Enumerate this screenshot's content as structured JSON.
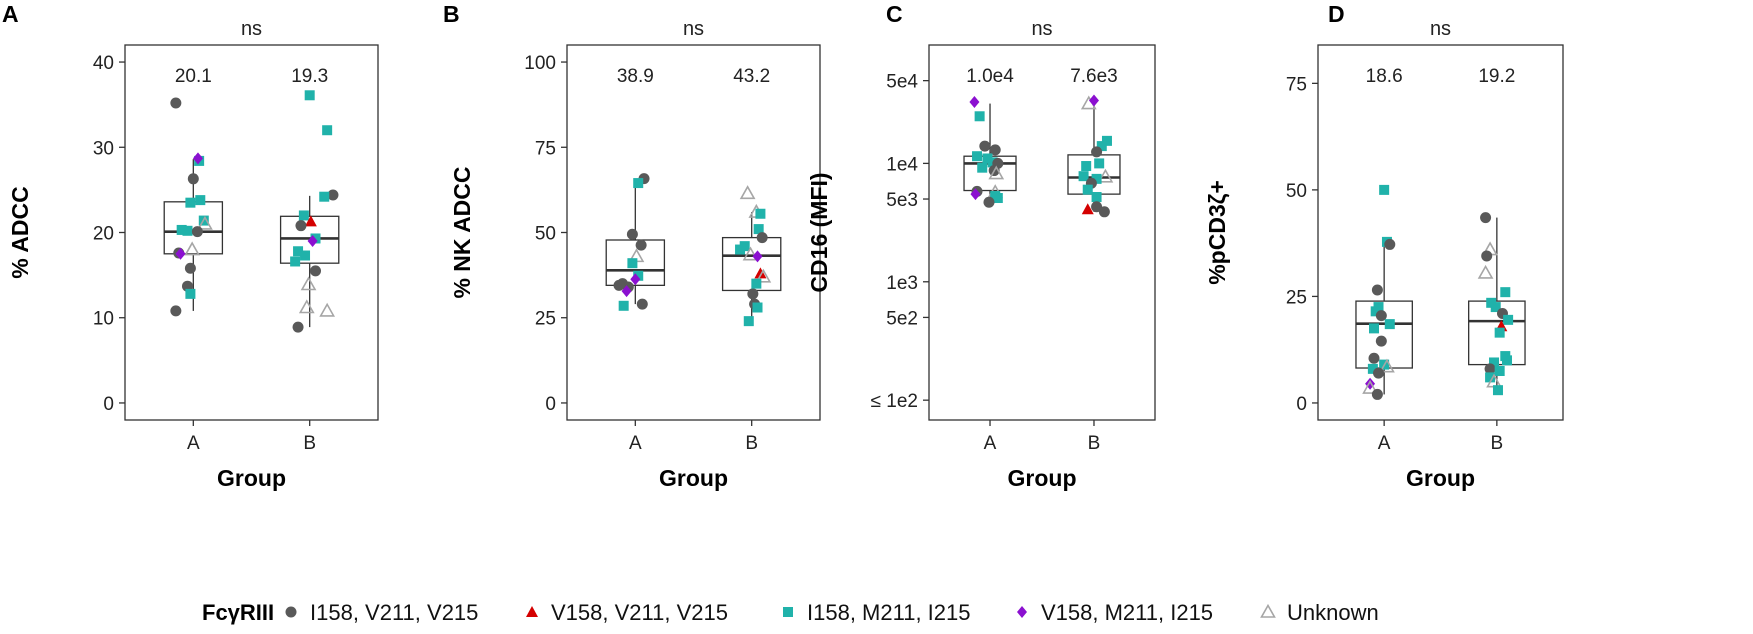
{
  "colors": {
    "I158_V211_V215": "#595959",
    "V158_V211_V215": "#d40000",
    "I158_M211_I215": "#20b2aa",
    "V158_M211_I215": "#8b10d0",
    "Unknown": "#a6a6a6"
  },
  "legend": {
    "title": "FcγRIII",
    "entries": [
      {
        "key": "I158_V211_V215",
        "label": "I158, V211, V215",
        "shape": "circle"
      },
      {
        "key": "V158_V211_V215",
        "label": "V158, V211, V215",
        "shape": "triangle"
      },
      {
        "key": "I158_M211_I215",
        "label": "I158, M211, I215",
        "shape": "square"
      },
      {
        "key": "V158_M211_I215",
        "label": "V158, M211, I215",
        "shape": "diamond"
      },
      {
        "key": "Unknown",
        "label": "Unknown",
        "shape": "open-triangle"
      }
    ]
  },
  "chart_data": [
    {
      "panel": "A",
      "type": "box+scatter",
      "scale": "linear",
      "title": "ns",
      "xlabel": "Group",
      "ylabel": "% ADCC",
      "categories": [
        "A",
        "B"
      ],
      "ylim": [
        -2,
        42
      ],
      "yticks": [
        0,
        10,
        20,
        30,
        40
      ],
      "yticklabels": [
        "0",
        "10",
        "20",
        "30",
        "40"
      ],
      "medians_label": [
        "20.1",
        "19.3"
      ],
      "boxes": [
        {
          "q1": 17.5,
          "median": 20.1,
          "q3": 23.6,
          "wlo": 10.8,
          "whi": 28.6
        },
        {
          "q1": 16.4,
          "median": 19.3,
          "q3": 21.9,
          "wlo": 8.9,
          "whi": 24.3
        }
      ],
      "points": [
        {
          "g": 0,
          "j": -0.3,
          "y": 35.2,
          "c": "I158_V211_V215"
        },
        {
          "g": 0,
          "j": 0.0,
          "y": 26.3,
          "c": "I158_V211_V215"
        },
        {
          "g": 0,
          "j": 0.1,
          "y": 28.4,
          "c": "I158_M211_I215"
        },
        {
          "g": 0,
          "j": 0.08,
          "y": 28.7,
          "c": "V158_M211_I215"
        },
        {
          "g": 0,
          "j": 0.12,
          "y": 23.8,
          "c": "I158_M211_I215"
        },
        {
          "g": 0,
          "j": -0.05,
          "y": 23.5,
          "c": "I158_M211_I215"
        },
        {
          "g": 0,
          "j": 0.18,
          "y": 21.4,
          "c": "I158_M211_I215"
        },
        {
          "g": 0,
          "j": 0.2,
          "y": 21.0,
          "c": "Unknown"
        },
        {
          "g": 0,
          "j": -0.2,
          "y": 20.3,
          "c": "I158_M211_I215"
        },
        {
          "g": 0,
          "j": -0.1,
          "y": 20.2,
          "c": "I158_M211_I215"
        },
        {
          "g": 0,
          "j": 0.07,
          "y": 20.1,
          "c": "I158_V211_V215"
        },
        {
          "g": 0,
          "j": -0.25,
          "y": 17.6,
          "c": "I158_V211_V215"
        },
        {
          "g": 0,
          "j": -0.02,
          "y": 18.0,
          "c": "Unknown"
        },
        {
          "g": 0,
          "j": -0.22,
          "y": 17.5,
          "c": "V158_M211_I215"
        },
        {
          "g": 0,
          "j": -0.05,
          "y": 15.8,
          "c": "I158_V211_V215"
        },
        {
          "g": 0,
          "j": -0.1,
          "y": 13.7,
          "c": "I158_V211_V215"
        },
        {
          "g": 0,
          "j": -0.05,
          "y": 12.8,
          "c": "I158_M211_I215"
        },
        {
          "g": 0,
          "j": -0.3,
          "y": 10.8,
          "c": "I158_V211_V215"
        },
        {
          "g": 1,
          "j": 0.0,
          "y": 36.1,
          "c": "I158_M211_I215"
        },
        {
          "g": 1,
          "j": 0.3,
          "y": 32.0,
          "c": "I158_M211_I215"
        },
        {
          "g": 1,
          "j": 0.4,
          "y": 24.4,
          "c": "I158_V211_V215"
        },
        {
          "g": 1,
          "j": 0.25,
          "y": 24.2,
          "c": "I158_M211_I215"
        },
        {
          "g": 1,
          "j": -0.1,
          "y": 22.0,
          "c": "I158_M211_I215"
        },
        {
          "g": 1,
          "j": 0.02,
          "y": 21.3,
          "c": "V158_V211_V215"
        },
        {
          "g": 1,
          "j": -0.15,
          "y": 20.8,
          "c": "I158_V211_V215"
        },
        {
          "g": 1,
          "j": 0.1,
          "y": 19.3,
          "c": "I158_M211_I215"
        },
        {
          "g": 1,
          "j": 0.05,
          "y": 19.0,
          "c": "V158_M211_I215"
        },
        {
          "g": 1,
          "j": -0.2,
          "y": 17.8,
          "c": "I158_M211_I215"
        },
        {
          "g": 1,
          "j": -0.08,
          "y": 17.3,
          "c": "I158_M211_I215"
        },
        {
          "g": 1,
          "j": -0.25,
          "y": 16.6,
          "c": "I158_M211_I215"
        },
        {
          "g": 1,
          "j": 0.1,
          "y": 15.5,
          "c": "I158_V211_V215"
        },
        {
          "g": 1,
          "j": -0.02,
          "y": 13.9,
          "c": "Unknown"
        },
        {
          "g": 1,
          "j": -0.05,
          "y": 11.2,
          "c": "Unknown"
        },
        {
          "g": 1,
          "j": 0.3,
          "y": 10.8,
          "c": "Unknown"
        },
        {
          "g": 1,
          "j": -0.2,
          "y": 8.9,
          "c": "I158_V211_V215"
        }
      ]
    },
    {
      "panel": "B",
      "type": "box+scatter",
      "scale": "linear",
      "title": "ns",
      "xlabel": "Group",
      "ylabel": "% NK ADCC",
      "categories": [
        "A",
        "B"
      ],
      "ylim": [
        -5,
        105
      ],
      "yticks": [
        0,
        25,
        50,
        75,
        100
      ],
      "yticklabels": [
        "0",
        "25",
        "50",
        "75",
        "100"
      ],
      "medians_label": [
        "38.9",
        "43.2"
      ],
      "boxes": [
        {
          "q1": 34.5,
          "median": 38.9,
          "q3": 47.8,
          "wlo": 29.0,
          "whi": 65.8
        },
        {
          "q1": 33.0,
          "median": 43.2,
          "q3": 48.5,
          "wlo": 24.0,
          "whi": 56.0
        }
      ],
      "points": [
        {
          "g": 0,
          "j": 0.15,
          "y": 65.8,
          "c": "I158_V211_V215"
        },
        {
          "g": 0,
          "j": 0.05,
          "y": 64.5,
          "c": "I158_M211_I215"
        },
        {
          "g": 0,
          "j": -0.05,
          "y": 49.5,
          "c": "I158_V211_V215"
        },
        {
          "g": 0,
          "j": 0.1,
          "y": 46.3,
          "c": "I158_V211_V215"
        },
        {
          "g": 0,
          "j": 0.02,
          "y": 43.0,
          "c": "Unknown"
        },
        {
          "g": 0,
          "j": -0.05,
          "y": 41.0,
          "c": "I158_M211_I215"
        },
        {
          "g": 0,
          "j": 0.05,
          "y": 37.3,
          "c": "I158_M211_I215"
        },
        {
          "g": 0,
          "j": 0.0,
          "y": 36.3,
          "c": "V158_M211_I215"
        },
        {
          "g": 0,
          "j": -0.22,
          "y": 35.0,
          "c": "I158_V211_V215"
        },
        {
          "g": 0,
          "j": -0.12,
          "y": 34.0,
          "c": "I158_V211_V215"
        },
        {
          "g": 0,
          "j": -0.28,
          "y": 34.5,
          "c": "I158_V211_V215"
        },
        {
          "g": 0,
          "j": -0.15,
          "y": 32.8,
          "c": "V158_M211_I215"
        },
        {
          "g": 0,
          "j": -0.2,
          "y": 28.5,
          "c": "I158_M211_I215"
        },
        {
          "g": 0,
          "j": 0.12,
          "y": 29.0,
          "c": "I158_V211_V215"
        },
        {
          "g": 1,
          "j": -0.07,
          "y": 61.5,
          "c": "Unknown"
        },
        {
          "g": 1,
          "j": 0.08,
          "y": 56.0,
          "c": "Unknown"
        },
        {
          "g": 1,
          "j": 0.15,
          "y": 55.5,
          "c": "I158_M211_I215"
        },
        {
          "g": 1,
          "j": 0.12,
          "y": 51.0,
          "c": "I158_M211_I215"
        },
        {
          "g": 1,
          "j": 0.18,
          "y": 48.5,
          "c": "I158_V211_V215"
        },
        {
          "g": 1,
          "j": -0.12,
          "y": 46.0,
          "c": "I158_M211_I215"
        },
        {
          "g": 1,
          "j": -0.2,
          "y": 45.0,
          "c": "I158_M211_I215"
        },
        {
          "g": 1,
          "j": -0.02,
          "y": 43.5,
          "c": "Unknown"
        },
        {
          "g": 1,
          "j": 0.1,
          "y": 43.0,
          "c": "V158_M211_I215"
        },
        {
          "g": 1,
          "j": 0.15,
          "y": 38.0,
          "c": "V158_V211_V215"
        },
        {
          "g": 1,
          "j": 0.2,
          "y": 37.0,
          "c": "Unknown"
        },
        {
          "g": 1,
          "j": 0.02,
          "y": 32.0,
          "c": "I158_V211_V215"
        },
        {
          "g": 1,
          "j": 0.08,
          "y": 35.0,
          "c": "I158_M211_I215"
        },
        {
          "g": 1,
          "j": 0.05,
          "y": 29.0,
          "c": "I158_V211_V215"
        },
        {
          "g": 1,
          "j": 0.1,
          "y": 28.0,
          "c": "I158_M211_I215"
        },
        {
          "g": 1,
          "j": -0.05,
          "y": 24.0,
          "c": "I158_M211_I215"
        }
      ]
    },
    {
      "panel": "C",
      "type": "box+scatter",
      "scale": "log",
      "title": "ns",
      "xlabel": "Group",
      "ylabel": "CD16 (MFI)",
      "categories": [
        "A",
        "B"
      ],
      "ylim": [
        68,
        100000
      ],
      "yticks": [
        100,
        500,
        1000,
        5000,
        10000,
        50000
      ],
      "yticklabels": [
        "≤ 1e2",
        "5e2",
        "1e3",
        "5e3",
        "1e4",
        "5e4"
      ],
      "medians_label": [
        "1.0e4",
        "7.6e3"
      ],
      "boxes": [
        {
          "q1": 5900,
          "median": 10000,
          "q3": 11500,
          "wlo": 4700,
          "whi": 32000
        },
        {
          "q1": 5500,
          "median": 7600,
          "q3": 11800,
          "wlo": 3900,
          "whi": 34000
        }
      ],
      "points": [
        {
          "g": 0,
          "j": -0.3,
          "y": 33000,
          "c": "V158_M211_I215"
        },
        {
          "g": 0,
          "j": -0.2,
          "y": 25000,
          "c": "I158_M211_I215"
        },
        {
          "g": 0,
          "j": -0.1,
          "y": 14000,
          "c": "I158_V211_V215"
        },
        {
          "g": 0,
          "j": 0.1,
          "y": 13000,
          "c": "I158_V211_V215"
        },
        {
          "g": 0,
          "j": -0.25,
          "y": 11500,
          "c": "I158_M211_I215"
        },
        {
          "g": 0,
          "j": -0.05,
          "y": 11000,
          "c": "I158_M211_I215"
        },
        {
          "g": 0,
          "j": 0.05,
          "y": 10200,
          "c": "I158_M211_I215"
        },
        {
          "g": 0,
          "j": 0.15,
          "y": 10000,
          "c": "I158_V211_V215"
        },
        {
          "g": 0,
          "j": -0.15,
          "y": 9200,
          "c": "I158_M211_I215"
        },
        {
          "g": 0,
          "j": 0.08,
          "y": 8700,
          "c": "I158_V211_V215"
        },
        {
          "g": 0,
          "j": 0.12,
          "y": 8200,
          "c": "Unknown"
        },
        {
          "g": 0,
          "j": -0.25,
          "y": 5800,
          "c": "I158_V211_V215"
        },
        {
          "g": 0,
          "j": -0.28,
          "y": 5500,
          "c": "V158_M211_I215"
        },
        {
          "g": 0,
          "j": 0.1,
          "y": 5700,
          "c": "Unknown"
        },
        {
          "g": 0,
          "j": 0.1,
          "y": 5300,
          "c": "I158_M211_I215"
        },
        {
          "g": 0,
          "j": 0.15,
          "y": 5100,
          "c": "I158_M211_I215"
        },
        {
          "g": 0,
          "j": -0.02,
          "y": 4700,
          "c": "I158_V211_V215"
        },
        {
          "g": 1,
          "j": -0.1,
          "y": 32000,
          "c": "Unknown"
        },
        {
          "g": 1,
          "j": 0.0,
          "y": 34000,
          "c": "V158_M211_I215"
        },
        {
          "g": 1,
          "j": 0.25,
          "y": 15500,
          "c": "I158_M211_I215"
        },
        {
          "g": 1,
          "j": 0.15,
          "y": 14000,
          "c": "I158_M211_I215"
        },
        {
          "g": 1,
          "j": 0.05,
          "y": 12500,
          "c": "I158_V211_V215"
        },
        {
          "g": 1,
          "j": 0.1,
          "y": 10000,
          "c": "I158_M211_I215"
        },
        {
          "g": 1,
          "j": -0.15,
          "y": 9500,
          "c": "I158_M211_I215"
        },
        {
          "g": 1,
          "j": -0.2,
          "y": 7800,
          "c": "I158_M211_I215"
        },
        {
          "g": 1,
          "j": 0.22,
          "y": 7700,
          "c": "Unknown"
        },
        {
          "g": 1,
          "j": 0.05,
          "y": 7400,
          "c": "I158_M211_I215"
        },
        {
          "g": 1,
          "j": -0.05,
          "y": 6800,
          "c": "I158_V211_V215"
        },
        {
          "g": 1,
          "j": -0.12,
          "y": 6000,
          "c": "I158_M211_I215"
        },
        {
          "g": 1,
          "j": 0.05,
          "y": 5200,
          "c": "I158_M211_I215"
        },
        {
          "g": 1,
          "j": -0.12,
          "y": 4100,
          "c": "V158_V211_V215"
        },
        {
          "g": 1,
          "j": 0.05,
          "y": 4300,
          "c": "I158_V211_V215"
        },
        {
          "g": 1,
          "j": 0.2,
          "y": 3900,
          "c": "I158_V211_V215"
        }
      ]
    },
    {
      "panel": "D",
      "type": "box+scatter",
      "scale": "linear",
      "title": "ns",
      "xlabel": "Group",
      "ylabel": "%pCD3ζ+",
      "categories": [
        "A",
        "B"
      ],
      "ylim": [
        -4,
        84
      ],
      "yticks": [
        0,
        25,
        50,
        75
      ],
      "yticklabels": [
        "0",
        "25",
        "50",
        "75"
      ],
      "medians_label": [
        "18.6",
        "19.2"
      ],
      "boxes": [
        {
          "q1": 8.2,
          "median": 18.6,
          "q3": 23.9,
          "wlo": 2.0,
          "whi": 38.0
        },
        {
          "q1": 9.0,
          "median": 19.2,
          "q3": 23.9,
          "wlo": 3.0,
          "whi": 43.5
        }
      ],
      "points": [
        {
          "g": 0,
          "j": 0.0,
          "y": 50.0,
          "c": "I158_M211_I215"
        },
        {
          "g": 0,
          "j": 0.05,
          "y": 37.8,
          "c": "I158_M211_I215"
        },
        {
          "g": 0,
          "j": 0.1,
          "y": 37.2,
          "c": "I158_V211_V215"
        },
        {
          "g": 0,
          "j": -0.12,
          "y": 26.5,
          "c": "I158_V211_V215"
        },
        {
          "g": 0,
          "j": -0.1,
          "y": 22.5,
          "c": "I158_M211_I215"
        },
        {
          "g": 0,
          "j": -0.15,
          "y": 21.5,
          "c": "I158_M211_I215"
        },
        {
          "g": 0,
          "j": -0.05,
          "y": 20.5,
          "c": "I158_V211_V215"
        },
        {
          "g": 0,
          "j": 0.1,
          "y": 18.5,
          "c": "I158_M211_I215"
        },
        {
          "g": 0,
          "j": -0.18,
          "y": 17.5,
          "c": "I158_M211_I215"
        },
        {
          "g": 0,
          "j": -0.05,
          "y": 14.5,
          "c": "I158_V211_V215"
        },
        {
          "g": 0,
          "j": -0.18,
          "y": 10.5,
          "c": "I158_V211_V215"
        },
        {
          "g": 0,
          "j": -0.2,
          "y": 8.0,
          "c": "I158_M211_I215"
        },
        {
          "g": 0,
          "j": 0.0,
          "y": 9.0,
          "c": "I158_M211_I215"
        },
        {
          "g": 0,
          "j": 0.05,
          "y": 8.5,
          "c": "Unknown"
        },
        {
          "g": 0,
          "j": -0.1,
          "y": 7.0,
          "c": "I158_V211_V215"
        },
        {
          "g": 0,
          "j": -0.25,
          "y": 4.5,
          "c": "V158_M211_I215"
        },
        {
          "g": 0,
          "j": -0.25,
          "y": 3.5,
          "c": "Unknown"
        },
        {
          "g": 0,
          "j": -0.12,
          "y": 2.0,
          "c": "I158_V211_V215"
        },
        {
          "g": 1,
          "j": -0.2,
          "y": 43.5,
          "c": "I158_V211_V215"
        },
        {
          "g": 1,
          "j": -0.12,
          "y": 36.0,
          "c": "Unknown"
        },
        {
          "g": 1,
          "j": -0.18,
          "y": 34.5,
          "c": "I158_V211_V215"
        },
        {
          "g": 1,
          "j": -0.2,
          "y": 30.5,
          "c": "Unknown"
        },
        {
          "g": 1,
          "j": 0.15,
          "y": 26.0,
          "c": "I158_M211_I215"
        },
        {
          "g": 1,
          "j": -0.1,
          "y": 23.5,
          "c": "I158_M211_I215"
        },
        {
          "g": 1,
          "j": -0.02,
          "y": 22.5,
          "c": "I158_M211_I215"
        },
        {
          "g": 1,
          "j": 0.1,
          "y": 21.0,
          "c": "I158_V211_V215"
        },
        {
          "g": 1,
          "j": 0.2,
          "y": 19.5,
          "c": "I158_M211_I215"
        },
        {
          "g": 1,
          "j": 0.08,
          "y": 18.0,
          "c": "V158_V211_V215"
        },
        {
          "g": 1,
          "j": 0.05,
          "y": 16.5,
          "c": "I158_M211_I215"
        },
        {
          "g": 1,
          "j": 0.15,
          "y": 11.0,
          "c": "I158_M211_I215"
        },
        {
          "g": 1,
          "j": 0.18,
          "y": 10.0,
          "c": "I158_M211_I215"
        },
        {
          "g": 1,
          "j": -0.05,
          "y": 9.5,
          "c": "I158_M211_I215"
        },
        {
          "g": 1,
          "j": -0.12,
          "y": 8.0,
          "c": "I158_V211_V215"
        },
        {
          "g": 1,
          "j": 0.05,
          "y": 7.5,
          "c": "I158_M211_I215"
        },
        {
          "g": 1,
          "j": -0.12,
          "y": 6.0,
          "c": "I158_M211_I215"
        },
        {
          "g": 1,
          "j": -0.05,
          "y": 5.0,
          "c": "Unknown"
        },
        {
          "g": 1,
          "j": 0.02,
          "y": 3.0,
          "c": "I158_M211_I215"
        }
      ]
    }
  ]
}
